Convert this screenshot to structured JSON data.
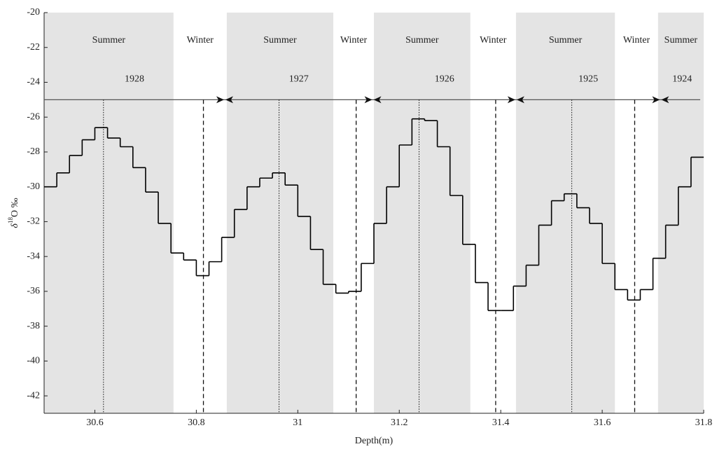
{
  "chart_data": {
    "type": "step",
    "xlabel": "Depth(m)",
    "ylabel": {
      "prefix": "δ",
      "superscript": "18",
      "suffix": "O ‰"
    },
    "xlim": [
      30.5,
      31.8
    ],
    "ylim": [
      -43,
      -20
    ],
    "xticks": [
      30.6,
      30.8,
      31,
      31.2,
      31.4,
      31.6,
      31.8
    ],
    "yticks": [
      -20,
      -22,
      -24,
      -26,
      -28,
      -30,
      -32,
      -34,
      -36,
      -38,
      -40,
      -42
    ],
    "color": "#000000",
    "shade_color": "#e4e4e4",
    "x": [
      30.5,
      30.525,
      30.55,
      30.575,
      30.6,
      30.625,
      30.65,
      30.675,
      30.7,
      30.725,
      30.75,
      30.775,
      30.8,
      30.825,
      30.85,
      30.875,
      30.9,
      30.925,
      30.95,
      30.975,
      31,
      31.025,
      31.05,
      31.075,
      31.1,
      31.125,
      31.15,
      31.175,
      31.2,
      31.225,
      31.25,
      31.275,
      31.3,
      31.325,
      31.35,
      31.375,
      31.4,
      31.425,
      31.45,
      31.475,
      31.5,
      31.525,
      31.55,
      31.575,
      31.6,
      31.625,
      31.65,
      31.675,
      31.7,
      31.725,
      31.75,
      31.775
    ],
    "values": [
      -30.0,
      -29.2,
      -28.2,
      -27.3,
      -26.6,
      -27.2,
      -27.7,
      -28.9,
      -30.3,
      -32.1,
      -33.8,
      -34.2,
      -35.1,
      -34.3,
      -32.9,
      -31.3,
      -30.0,
      -29.5,
      -29.2,
      -29.9,
      -31.7,
      -33.6,
      -35.6,
      -36.1,
      -36.0,
      -34.4,
      -32.1,
      -30.0,
      -27.6,
      -26.1,
      -26.2,
      -27.7,
      -30.5,
      -33.3,
      -35.5,
      -37.1,
      -37.1,
      -35.7,
      -34.5,
      -32.2,
      -30.8,
      -30.4,
      -31.2,
      -32.1,
      -34.4,
      -35.9,
      -36.5,
      -35.9,
      -34.1,
      -32.2,
      -30.0,
      -28.3
    ],
    "seasons": [
      {
        "label": "Summer",
        "range": [
          30.5,
          30.755
        ],
        "shaded": true
      },
      {
        "label": "Winter",
        "range": [
          30.755,
          30.86
        ],
        "shaded": false
      },
      {
        "label": "Summer",
        "range": [
          30.86,
          31.07
        ],
        "shaded": true
      },
      {
        "label": "Winter",
        "range": [
          31.07,
          31.15
        ],
        "shaded": false
      },
      {
        "label": "Summer",
        "range": [
          31.15,
          31.34
        ],
        "shaded": true
      },
      {
        "label": "Winter",
        "range": [
          31.34,
          31.43
        ],
        "shaded": false
      },
      {
        "label": "Summer",
        "range": [
          31.43,
          31.625
        ],
        "shaded": true
      },
      {
        "label": "Winter",
        "range": [
          31.625,
          31.71
        ],
        "shaded": false
      },
      {
        "label": "Summer",
        "range": [
          31.71,
          31.8
        ],
        "shaded": true
      }
    ],
    "season_label_y": -21.6,
    "year_line_y": -25,
    "year_label_y": -24.4,
    "years": [
      {
        "label": "1928",
        "range": [
          30.5,
          30.856
        ]
      },
      {
        "label": "1927",
        "range": [
          30.856,
          31.148
        ]
      },
      {
        "label": "1926",
        "range": [
          31.148,
          31.43
        ]
      },
      {
        "label": "1925",
        "range": [
          31.43,
          31.715
        ]
      },
      {
        "label": "1924",
        "range": [
          31.715,
          31.8
        ]
      }
    ],
    "summer_peaks": [
      30.617,
      30.963,
      31.239,
      31.54
    ],
    "winter_troughs": [
      30.814,
      31.115,
      31.39,
      31.664
    ]
  }
}
